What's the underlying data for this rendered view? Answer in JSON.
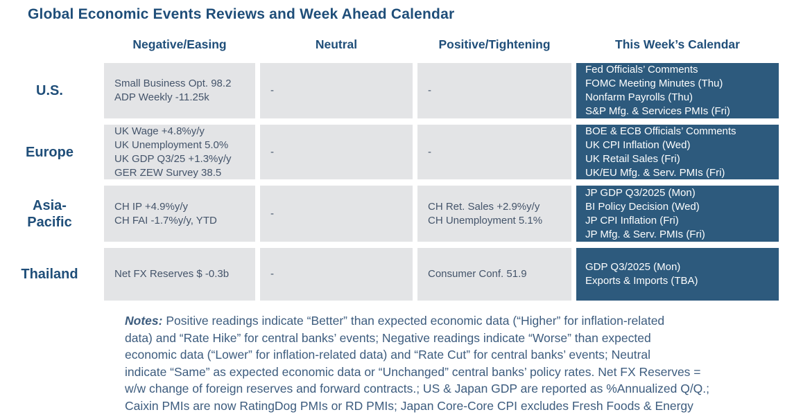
{
  "title": "Global Economic Events Reviews and Week Ahead Calendar",
  "columns": [
    "Negative/Easing",
    "Neutral",
    "Positive/Tightening",
    "This Week’s Calendar"
  ],
  "rows": [
    {
      "region": "U.S.",
      "negative": [
        "Small Business Opt. 98.2",
        "ADP Weekly -11.25k"
      ],
      "neutral": [
        "-"
      ],
      "positive": [
        "-"
      ],
      "calendar": [
        "Fed Officials’ Comments",
        "FOMC Meeting Minutes (Thu)",
        "Nonfarm Payrolls (Thu)",
        "S&P Mfg. & Services PMIs (Fri)"
      ]
    },
    {
      "region": "Europe",
      "negative": [
        "UK Wage +4.8%y/y",
        "UK Unemployment 5.0%",
        "UK GDP Q3/25 +1.3%y/y",
        "GER ZEW Survey 38.5"
      ],
      "neutral": [
        "-"
      ],
      "positive": [
        "-"
      ],
      "calendar": [
        "BOE & ECB Officials’ Comments",
        "UK CPI Inflation (Wed)",
        "UK Retail Sales (Fri)",
        "UK/EU Mfg. & Serv. PMIs (Fri)"
      ]
    },
    {
      "region": "Asia-\nPacific",
      "negative": [
        "CH IP +4.9%y/y",
        "CH FAI -1.7%y/y, YTD"
      ],
      "neutral": [
        "-"
      ],
      "positive": [
        "CH Ret. Sales +2.9%y/y",
        "CH Unemployment 5.1%"
      ],
      "calendar": [
        "JP GDP Q3/2025 (Mon)",
        "BI Policy Decision (Wed)",
        "JP CPI Inflation (Fri)",
        "JP Mfg. & Serv. PMIs (Fri)"
      ]
    },
    {
      "region": "Thailand",
      "negative": [
        "Net FX Reserves $ -0.3b"
      ],
      "neutral": [
        "-"
      ],
      "positive": [
        "Consumer Conf. 51.9"
      ],
      "calendar": [
        "GDP Q3/2025 (Mon)",
        "Exports & Imports (TBA)"
      ]
    }
  ],
  "notes": {
    "label": "Notes:",
    "lines": [
      "Positive readings indicate “Better” than expected economic data (“Higher” for inflation-related",
      "data) and “Rate Hike” for central banks’ events; Negative readings indicate “Worse” than expected",
      "economic data (“Lower” for inflation-related data) and “Rate Cut” for central banks’ events; Neutral",
      "indicate “Same” as expected economic data or “Unchanged” central banks’ policy rates. Net FX Reserves =",
      "w/w change of foreign reserves and forward contracts.; US & Japan GDP are reported as %Annualized Q/Q.;",
      "Caixin PMIs are now RatingDog PMIs or RD PMIs; Japan Core-Core CPI excludes Fresh Foods & Energy"
    ]
  },
  "colors": {
    "accent_navy": "#1F4E79",
    "cell_background": "#E3E4E6",
    "cell_text": "#44546A",
    "calendar_background": "#2D5A7D",
    "calendar_text": "#FDFEFE"
  }
}
